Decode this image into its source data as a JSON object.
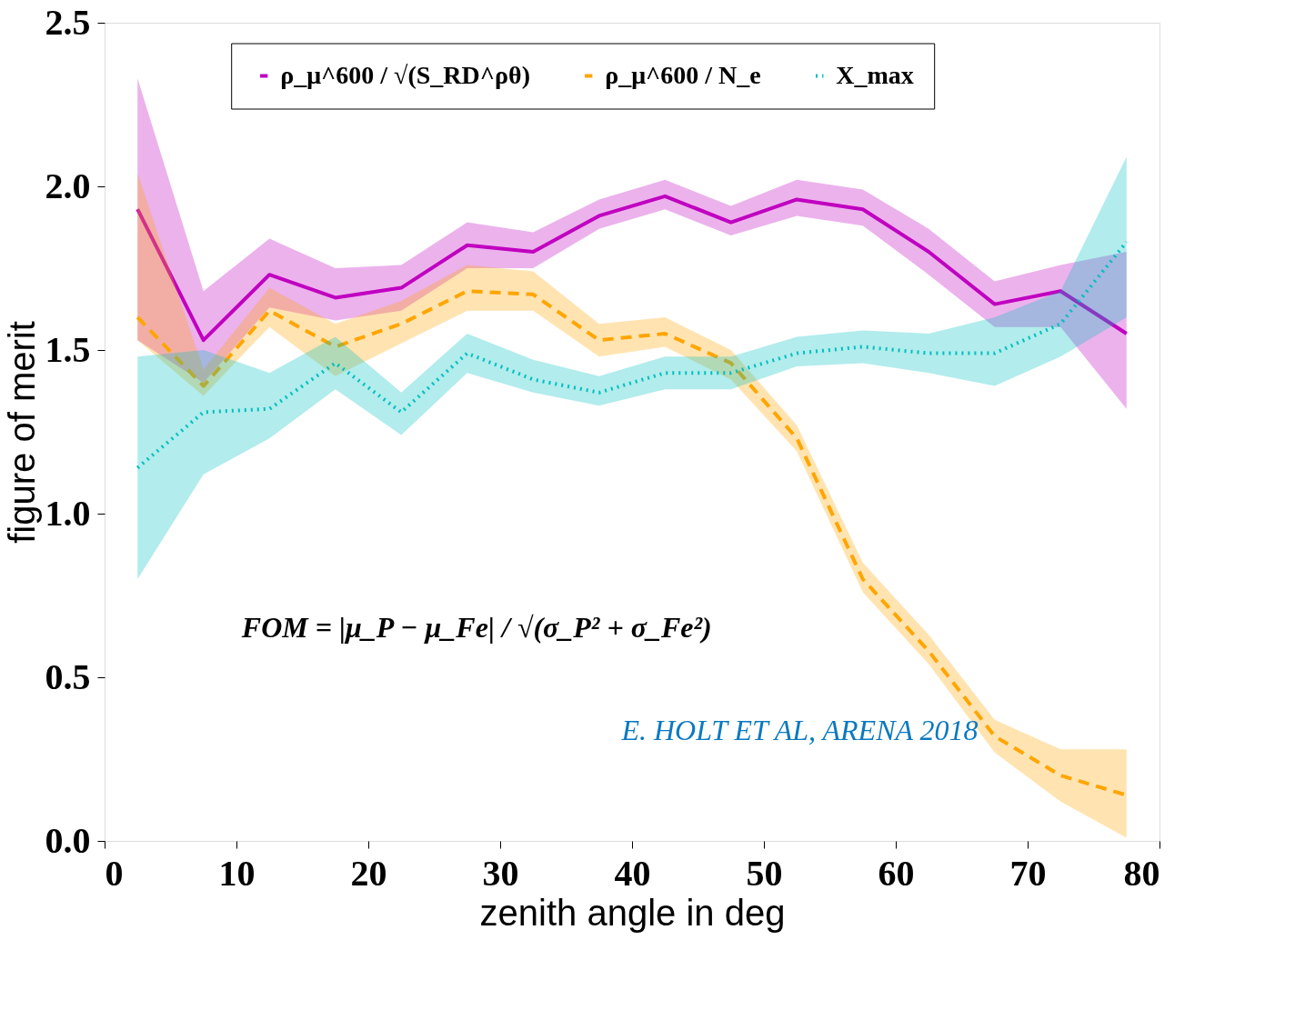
{
  "chart_data": {
    "type": "line",
    "xlabel": "zenith angle in deg",
    "ylabel": "figure of merit",
    "x": [
      2.5,
      7.5,
      12.5,
      17.5,
      22.5,
      27.5,
      32.5,
      37.5,
      42.5,
      47.5,
      52.5,
      57.5,
      62.5,
      67.5,
      72.5,
      77.5
    ],
    "xlim": [
      0,
      80
    ],
    "xticks": [
      0,
      10,
      20,
      30,
      40,
      50,
      60,
      70,
      80
    ],
    "ylim": [
      0,
      2.5
    ],
    "yticks": [
      {
        "value": 0,
        "label": "0.0"
      },
      0.5,
      {
        "value": 1,
        "label": "1.0"
      },
      1.5,
      {
        "value": 2,
        "label": "2.0"
      },
      2.5
    ],
    "grid": false,
    "legend": "top",
    "marker": "none",
    "series": [
      {
        "name": "ρ_μ^600 / √(S_RD^ρθ)",
        "color": "#c000c0",
        "line_style": "solid",
        "values": [
          1.93,
          1.53,
          1.73,
          1.66,
          1.69,
          1.82,
          1.8,
          1.91,
          1.97,
          1.89,
          1.96,
          1.93,
          1.8,
          1.64,
          1.68,
          1.55
        ],
        "upper": [
          2.33,
          1.68,
          1.84,
          1.75,
          1.76,
          1.89,
          1.86,
          1.96,
          2.02,
          1.94,
          2.02,
          1.99,
          1.87,
          1.71,
          1.76,
          1.8
        ],
        "lower": [
          1.53,
          1.4,
          1.63,
          1.59,
          1.62,
          1.75,
          1.75,
          1.87,
          1.93,
          1.85,
          1.91,
          1.88,
          1.73,
          1.57,
          1.57,
          1.32
        ]
      },
      {
        "name": "ρ_μ^600 / N_e",
        "color": "#ffa500",
        "line_style": "dashed",
        "values": [
          1.6,
          1.39,
          1.62,
          1.51,
          1.58,
          1.68,
          1.67,
          1.53,
          1.55,
          1.46,
          1.23,
          0.8,
          0.58,
          0.32,
          0.2,
          0.14
        ],
        "upper": [
          2.04,
          1.44,
          1.69,
          1.58,
          1.65,
          1.76,
          1.74,
          1.58,
          1.6,
          1.5,
          1.27,
          0.85,
          0.63,
          0.37,
          0.28,
          0.28
        ],
        "lower": [
          1.53,
          1.36,
          1.57,
          1.42,
          1.52,
          1.62,
          1.62,
          1.48,
          1.51,
          1.41,
          1.19,
          0.76,
          0.54,
          0.27,
          0.12,
          0.01
        ]
      },
      {
        "name": "X_max",
        "color": "#00bfbf",
        "line_style": "dotted",
        "values": [
          1.14,
          1.31,
          1.32,
          1.46,
          1.31,
          1.49,
          1.41,
          1.37,
          1.43,
          1.43,
          1.49,
          1.51,
          1.49,
          1.49,
          1.58,
          1.83
        ],
        "upper": [
          1.48,
          1.5,
          1.43,
          1.54,
          1.37,
          1.55,
          1.47,
          1.42,
          1.48,
          1.48,
          1.54,
          1.56,
          1.55,
          1.6,
          1.68,
          2.09
        ],
        "lower": [
          0.8,
          1.12,
          1.23,
          1.38,
          1.24,
          1.43,
          1.37,
          1.33,
          1.38,
          1.38,
          1.45,
          1.46,
          1.43,
          1.39,
          1.48,
          1.6
        ]
      }
    ],
    "annotations": [
      "FOM = |μ_P − μ_Fe| / √(σ_P² + σ_Fe²)",
      "E. HOLT ET AL, ARENA 2018"
    ]
  }
}
